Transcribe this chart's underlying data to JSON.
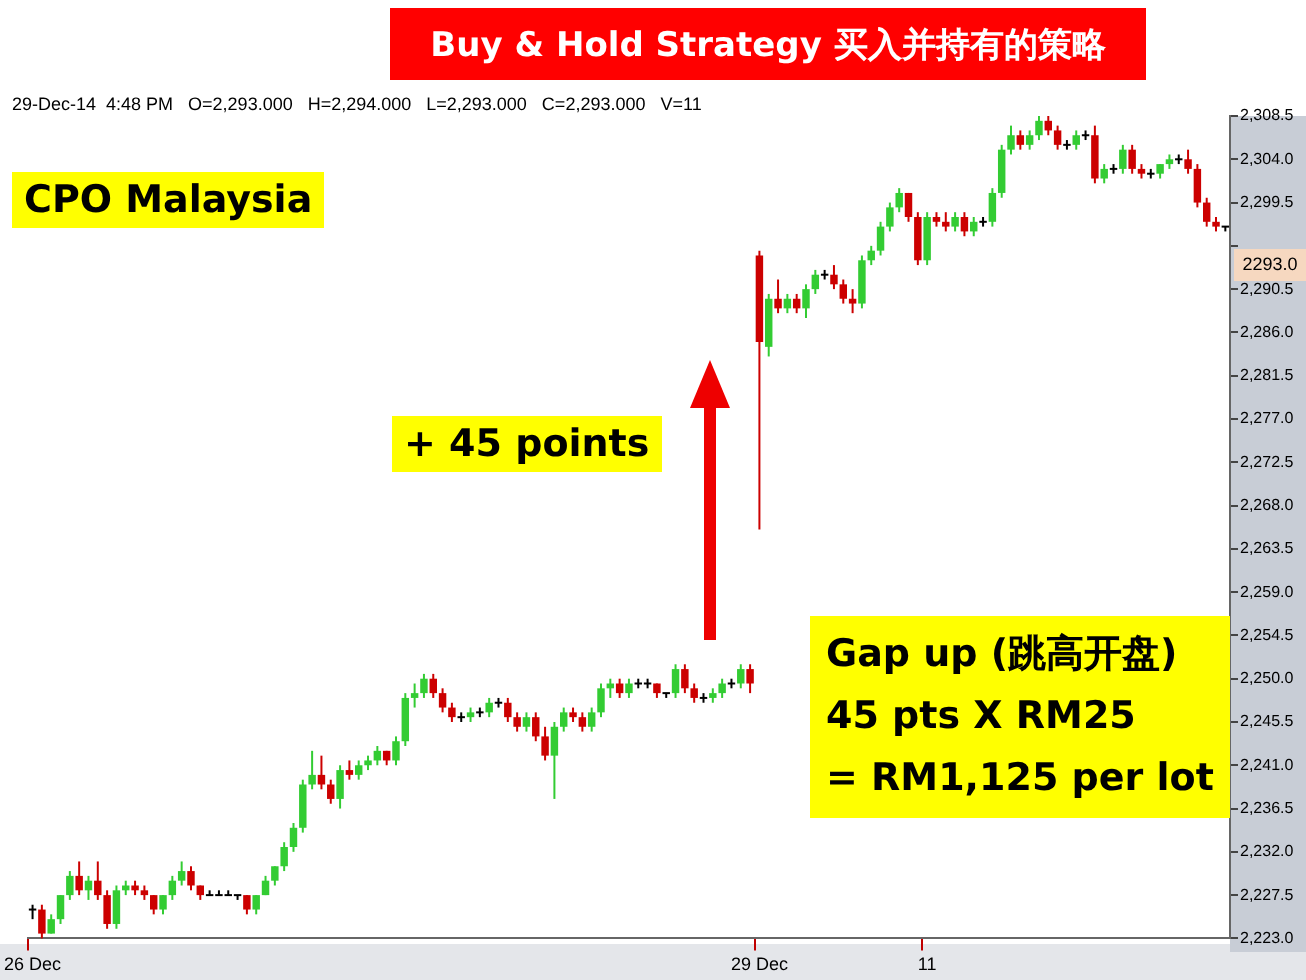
{
  "chart_data": {
    "type": "candlestick",
    "title": "Buy & Hold Strategy 买入并持有的策略",
    "categories": [
      "26 Dec",
      null,
      null,
      null,
      null,
      null,
      null,
      null,
      null,
      null,
      null,
      null,
      null,
      null,
      null,
      null,
      null,
      null,
      null,
      null,
      null,
      null,
      null,
      null,
      null,
      null,
      null,
      null,
      null,
      null,
      null,
      null,
      null,
      null,
      null,
      null,
      null,
      null,
      null,
      null,
      null,
      null,
      null,
      null,
      null,
      null,
      null,
      null,
      null,
      null,
      null,
      null,
      null,
      null,
      null,
      null,
      null,
      null,
      null,
      null,
      null,
      null,
      null,
      null,
      null,
      null,
      null,
      null,
      null,
      null,
      null,
      null,
      null,
      null,
      null,
      null,
      null,
      null,
      "29 Dec",
      null,
      null,
      null,
      null,
      null,
      null,
      null,
      null,
      null,
      null,
      null,
      null,
      null,
      null,
      null,
      null,
      null,
      "11",
      null,
      null,
      null,
      null,
      null,
      null,
      null,
      null,
      null,
      null,
      null,
      null,
      null,
      null,
      null,
      null,
      null,
      null,
      null,
      null,
      null,
      null,
      null,
      null,
      null,
      null,
      null,
      null,
      null,
      null,
      null,
      null
    ],
    "ohlc": [
      [
        2226,
        2226.5,
        2225,
        2226
      ],
      [
        2226,
        2226.5,
        2223,
        2223.5
      ],
      [
        2223.5,
        2225.5,
        2223.5,
        2225
      ],
      [
        2225,
        2227.5,
        2224.5,
        2227.5
      ],
      [
        2227.5,
        2230,
        2227,
        2229.5
      ],
      [
        2229.5,
        2231,
        2227.5,
        2228
      ],
      [
        2228,
        2229.5,
        2227,
        2229
      ],
      [
        2229,
        2231,
        2227,
        2227.5
      ],
      [
        2227.5,
        2228,
        2224,
        2224.5
      ],
      [
        2224.5,
        2228.5,
        2224,
        2228
      ],
      [
        2228,
        2229,
        2227.5,
        2228.5
      ],
      [
        2228.5,
        2229,
        2227.5,
        2228
      ],
      [
        2228,
        2228.5,
        2227,
        2227.5
      ],
      [
        2227.5,
        2227.5,
        2225.5,
        2226
      ],
      [
        2226,
        2227.5,
        2225.5,
        2227.5
      ],
      [
        2227.5,
        2229.5,
        2227,
        2229
      ],
      [
        2229,
        2231,
        2228.5,
        2230
      ],
      [
        2230,
        2230.5,
        2228,
        2228.5
      ],
      [
        2228.5,
        2228.5,
        2227,
        2227.5
      ],
      [
        2227.5,
        2228,
        2227.5,
        2227.5
      ],
      [
        2227.5,
        2228,
        2227.5,
        2227.5
      ],
      [
        2227.5,
        2228,
        2227.5,
        2227.5
      ],
      [
        2227.5,
        2227.5,
        2227,
        2227.5
      ],
      [
        2227.5,
        2227.5,
        2225.5,
        2226
      ],
      [
        2226,
        2227.5,
        2225.5,
        2227.5
      ],
      [
        2227.5,
        2229.5,
        2227.5,
        2229
      ],
      [
        2229,
        2230.5,
        2228.5,
        2230.5
      ],
      [
        2230.5,
        2233,
        2230,
        2232.5
      ],
      [
        2232.5,
        2235,
        2232,
        2234.5
      ],
      [
        2234.5,
        2239.5,
        2234,
        2239
      ],
      [
        2239,
        2242.5,
        2238.5,
        2240
      ],
      [
        2240,
        2242,
        2238.5,
        2239
      ],
      [
        2239,
        2239.5,
        2237,
        2237.5
      ],
      [
        2237.5,
        2241,
        2236.5,
        2240.5
      ],
      [
        2240.5,
        2241.5,
        2239.5,
        2240
      ],
      [
        2240,
        2241.5,
        2239.5,
        2241
      ],
      [
        2241,
        2242,
        2240.5,
        2241.5
      ],
      [
        2241.5,
        2243,
        2241,
        2242.5
      ],
      [
        2242.5,
        2242.5,
        2241,
        2241.5
      ],
      [
        2241.5,
        2244,
        2241,
        2243.5
      ],
      [
        2243.5,
        2248.5,
        2243,
        2248
      ],
      [
        2248,
        2249.5,
        2247,
        2248.5
      ],
      [
        2248.5,
        2250.5,
        2248,
        2250
      ],
      [
        2250,
        2250.5,
        2248,
        2248.5
      ],
      [
        2248.5,
        2249,
        2246.5,
        2247
      ],
      [
        2247,
        2247.5,
        2245.5,
        2246
      ],
      [
        2246,
        2246.5,
        2245.5,
        2246
      ],
      [
        2246,
        2247,
        2245.5,
        2246.5
      ],
      [
        2246.5,
        2247,
        2246,
        2246.5
      ],
      [
        2246.5,
        2248,
        2246,
        2247.5
      ],
      [
        2247.5,
        2248,
        2247,
        2247.5
      ],
      [
        2247.5,
        2248,
        2245.5,
        2246
      ],
      [
        2246,
        2246.5,
        2244.5,
        2245
      ],
      [
        2245,
        2246.5,
        2244.5,
        2246
      ],
      [
        2246,
        2246.5,
        2243.5,
        2244
      ],
      [
        2244,
        2245,
        2241.5,
        2242
      ],
      [
        2242,
        2245.5,
        2237.5,
        2245
      ],
      [
        2245,
        2247,
        2244.5,
        2246.5
      ],
      [
        2246.5,
        2247,
        2245.5,
        2246
      ],
      [
        2246,
        2246.5,
        2244.5,
        2245
      ],
      [
        2245,
        2247,
        2244.5,
        2246.5
      ],
      [
        2246.5,
        2249.5,
        2246,
        2249
      ],
      [
        2249,
        2250,
        2248,
        2249.5
      ],
      [
        2249.5,
        2250,
        2248,
        2248.5
      ],
      [
        2248.5,
        2250,
        2248,
        2249.5
      ],
      [
        2249.5,
        2250,
        2249,
        2249.5
      ],
      [
        2249.5,
        2250,
        2249,
        2249.5
      ],
      [
        2249.5,
        2249.5,
        2248,
        2248.5
      ],
      [
        2248.5,
        2248.5,
        2248,
        2248.5
      ],
      [
        2248.5,
        2251.5,
        2248,
        2251
      ],
      [
        2251,
        2251.5,
        2248.5,
        2249
      ],
      [
        2249,
        2249.5,
        2247.5,
        2248
      ],
      [
        2248,
        2248.5,
        2247.5,
        2248
      ],
      [
        2248,
        2249,
        2247.5,
        2248.5
      ],
      [
        2248.5,
        2250,
        2248,
        2249.5
      ],
      [
        2249.5,
        2250,
        2249,
        2249.5
      ],
      [
        2249.5,
        2251.5,
        2249,
        2251
      ],
      [
        2251,
        2251.5,
        2248.5,
        2249.5
      ],
      [
        2294,
        2294.5,
        2265.5,
        2285
      ],
      [
        2284.5,
        2290,
        2283.5,
        2289.5
      ],
      [
        2289.5,
        2291.5,
        2288,
        2288.5
      ],
      [
        2288.5,
        2290,
        2288,
        2289.5
      ],
      [
        2289.5,
        2290,
        2288,
        2288.5
      ],
      [
        2288.5,
        2291,
        2287.5,
        2290.5
      ],
      [
        2290.5,
        2292.5,
        2290,
        2292
      ],
      [
        2292,
        2292.5,
        2291.5,
        2292
      ],
      [
        2292,
        2293,
        2290.5,
        2291
      ],
      [
        2291,
        2291.5,
        2289,
        2289.5
      ],
      [
        2289.5,
        2290.5,
        2288,
        2289
      ],
      [
        2289,
        2294,
        2288.5,
        2293.5
      ],
      [
        2293.5,
        2295,
        2293,
        2294.5
      ],
      [
        2294.5,
        2297.5,
        2294,
        2297
      ],
      [
        2297,
        2299.5,
        2296.5,
        2299
      ],
      [
        2299,
        2301,
        2298.5,
        2300.5
      ],
      [
        2300.5,
        2300.5,
        2297.5,
        2298
      ],
      [
        2298,
        2298.5,
        2293,
        2293.5
      ],
      [
        2293.5,
        2298.5,
        2293,
        2298
      ],
      [
        2298,
        2298.5,
        2297,
        2297.5
      ],
      [
        2297.5,
        2298.5,
        2296.5,
        2297
      ],
      [
        2297,
        2298.5,
        2296.5,
        2298
      ],
      [
        2298,
        2298.5,
        2296,
        2296.5
      ],
      [
        2296.5,
        2298,
        2296,
        2297.5
      ],
      [
        2297.5,
        2298,
        2297,
        2297.5
      ],
      [
        2297.5,
        2301,
        2297,
        2300.5
      ],
      [
        2300.5,
        2305.5,
        2300,
        2305
      ],
      [
        2305,
        2307.5,
        2304.5,
        2306.5
      ],
      [
        2306.5,
        2307,
        2305,
        2305.5
      ],
      [
        2305.5,
        2307,
        2305,
        2306.5
      ],
      [
        2306.5,
        2308.5,
        2306,
        2308
      ],
      [
        2308,
        2308.5,
        2306.5,
        2307
      ],
      [
        2307,
        2307.5,
        2305,
        2305.5
      ],
      [
        2305.5,
        2306,
        2305,
        2305.5
      ],
      [
        2305.5,
        2307,
        2305,
        2306.5
      ],
      [
        2306.5,
        2307,
        2306,
        2306.5
      ],
      [
        2306.5,
        2307.5,
        2301.5,
        2302
      ],
      [
        2302,
        2303.5,
        2301.5,
        2303
      ],
      [
        2303,
        2303.5,
        2302.5,
        2303
      ],
      [
        2303,
        2305.5,
        2302.5,
        2305
      ],
      [
        2305,
        2305.5,
        2302.5,
        2303
      ],
      [
        2303,
        2303.5,
        2302,
        2302.5
      ],
      [
        2302.5,
        2303,
        2302,
        2302.5
      ],
      [
        2302.5,
        2303.5,
        2302,
        2303.5
      ],
      [
        2303.5,
        2304.5,
        2303,
        2304
      ],
      [
        2304,
        2304.5,
        2303.5,
        2304
      ],
      [
        2304,
        2305,
        2302.5,
        2303
      ],
      [
        2303,
        2303.5,
        2299,
        2299.5
      ],
      [
        2299.5,
        2300,
        2297,
        2297.5
      ],
      [
        2297.5,
        2298,
        2296.5,
        2297
      ],
      [
        2297,
        2297,
        2296.5,
        2297
      ]
    ],
    "colors": [
      "#000000",
      "#cc0000",
      "#33cc33",
      "#33cc33",
      "#33cc33",
      "#cc0000",
      "#33cc33",
      "#cc0000",
      "#cc0000",
      "#33cc33",
      "#33cc33",
      "#cc0000",
      "#cc0000",
      "#cc0000",
      "#33cc33",
      "#33cc33",
      "#33cc33",
      "#cc0000",
      "#cc0000",
      "#000000",
      "#000000",
      "#000000",
      "#000000",
      "#cc0000",
      "#33cc33",
      "#33cc33",
      "#33cc33",
      "#33cc33",
      "#33cc33",
      "#33cc33",
      "#33cc33",
      "#cc0000",
      "#cc0000",
      "#33cc33",
      "#cc0000",
      "#33cc33",
      "#33cc33",
      "#33cc33",
      "#cc0000",
      "#33cc33",
      "#33cc33",
      "#33cc33",
      "#33cc33",
      "#cc0000",
      "#cc0000",
      "#cc0000",
      "#000000",
      "#33cc33",
      "#000000",
      "#33cc33",
      "#000000",
      "#cc0000",
      "#cc0000",
      "#33cc33",
      "#cc0000",
      "#cc0000",
      "#33cc33",
      "#33cc33",
      "#cc0000",
      "#cc0000",
      "#33cc33",
      "#33cc33",
      "#33cc33",
      "#cc0000",
      "#33cc33",
      "#000000",
      "#000000",
      "#cc0000",
      "#000000",
      "#33cc33",
      "#cc0000",
      "#cc0000",
      "#000000",
      "#33cc33",
      "#33cc33",
      "#000000",
      "#33cc33",
      "#cc0000",
      "#cc0000",
      "#33cc33",
      "#cc0000",
      "#33cc33",
      "#cc0000",
      "#33cc33",
      "#33cc33",
      "#000000",
      "#cc0000",
      "#cc0000",
      "#cc0000",
      "#33cc33",
      "#33cc33",
      "#33cc33",
      "#33cc33",
      "#33cc33",
      "#cc0000",
      "#cc0000",
      "#33cc33",
      "#cc0000",
      "#cc0000",
      "#33cc33",
      "#cc0000",
      "#33cc33",
      "#000000",
      "#33cc33",
      "#33cc33",
      "#33cc33",
      "#cc0000",
      "#33cc33",
      "#33cc33",
      "#cc0000",
      "#cc0000",
      "#000000",
      "#33cc33",
      "#000000",
      "#cc0000",
      "#33cc33",
      "#000000",
      "#33cc33",
      "#cc0000",
      "#cc0000",
      "#000000",
      "#33cc33",
      "#33cc33",
      "#000000",
      "#cc0000",
      "#cc0000",
      "#cc0000",
      "#cc0000",
      "#000000"
    ],
    "ylim": [
      2223,
      2308.5
    ],
    "yticks": [
      {
        "value": 2223,
        "label": "2,223.0"
      },
      {
        "value": 2227.5,
        "label": "2,227.5"
      },
      {
        "value": 2232,
        "label": "2,232.0"
      },
      {
        "value": 2236.5,
        "label": "2,236.5"
      },
      {
        "value": 2241,
        "label": "2,241.0"
      },
      {
        "value": 2245.5,
        "label": "2,245.5"
      },
      {
        "value": 2250,
        "label": "2,250.0"
      },
      {
        "value": 2254.5,
        "label": "2,254.5"
      },
      {
        "value": 2259,
        "label": "2,259.0"
      },
      {
        "value": 2263.5,
        "label": "2,263.5"
      },
      {
        "value": 2268,
        "label": "2,268.0"
      },
      {
        "value": 2272.5,
        "label": "2,272.5"
      },
      {
        "value": 2277,
        "label": "2,277.0"
      },
      {
        "value": 2281.5,
        "label": "2,281.5"
      },
      {
        "value": 2286,
        "label": "2,286.0"
      },
      {
        "value": 2290.5,
        "label": "2,290.5"
      },
      {
        "value": 2295,
        "label": null
      },
      {
        "value": 2299.5,
        "label": "2,299.5"
      },
      {
        "value": 2304,
        "label": "2,304.0"
      },
      {
        "value": 2308.5,
        "label": "2,308.5"
      }
    ],
    "grid": false,
    "legend": false,
    "annotations": [
      "29-Dec-14  4:48 PM   O=2,293.000   H=2,294.000   L=2,293.000   C=2,293.000   V=11",
      "CPO Malaysia",
      "+ 45 points",
      "Gap up (跳高开盘)\n45 pts X RM25\n= RM1,125 per lot",
      {
        "text": "2293.0",
        "y": 2293
      }
    ]
  }
}
